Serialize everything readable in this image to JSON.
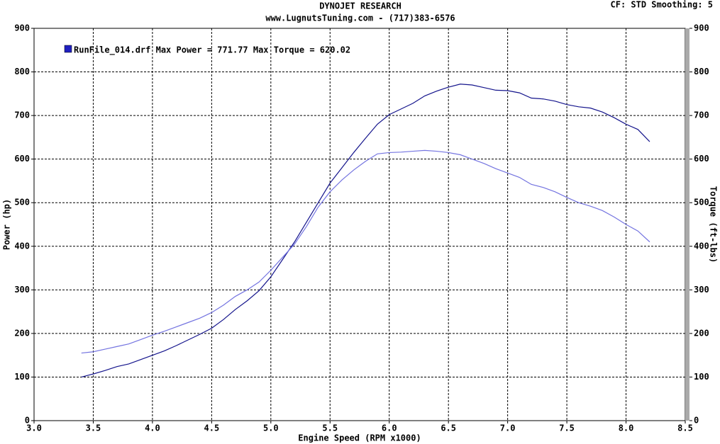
{
  "chart_data": {
    "type": "line",
    "title": "DYNOJET RESEARCH",
    "subtitle": "www.LugnutsTuning.com - (717)383-6576",
    "settings_label": "CF: STD  Smoothing: 5",
    "legend_text": "RunFile_014.drf Max Power = 771.77     Max Torque = 620.02",
    "x_label": "Engine Speed (RPM x1000)",
    "y_label": "Power (hp)",
    "y2_label": "Torque (ft-lbs)",
    "grid": true,
    "xlim": [
      3,
      8.5
    ],
    "xticks": [
      {
        "value": 3,
        "label": "3.0"
      },
      3.5,
      {
        "value": 4,
        "label": "4.0"
      },
      4.5,
      {
        "value": 5,
        "label": "5.0"
      },
      5.5,
      {
        "value": 6,
        "label": "6.0"
      },
      6.5,
      {
        "value": 7,
        "label": "7.0"
      },
      7.5,
      {
        "value": 8,
        "label": "8.0"
      },
      8.5
    ],
    "ylim": [
      0,
      900
    ],
    "yticks": [
      0,
      100,
      200,
      300,
      400,
      500,
      600,
      700,
      800,
      900
    ],
    "y2lim": [
      0,
      900
    ],
    "y2ticks": [
      0,
      100,
      200,
      300,
      400,
      500,
      600,
      700,
      800,
      900
    ],
    "x": [
      3.4,
      3.5,
      3.6,
      3.7,
      3.8,
      3.9,
      4.0,
      4.1,
      4.2,
      4.3,
      4.4,
      4.5,
      4.6,
      4.7,
      4.8,
      4.9,
      5.0,
      5.1,
      5.2,
      5.3,
      5.4,
      5.5,
      5.6,
      5.7,
      5.8,
      5.9,
      6.0,
      6.1,
      6.2,
      6.3,
      6.4,
      6.5,
      6.6,
      6.7,
      6.8,
      6.9,
      7.0,
      7.1,
      7.2,
      7.3,
      7.4,
      7.5,
      7.6,
      7.7,
      7.8,
      7.9,
      8.0,
      8.1,
      8.2
    ],
    "series": [
      {
        "color": "#14148c",
        "values": [
          100,
          107,
          115,
          124,
          130,
          140,
          150,
          160,
          172,
          185,
          198,
          212,
          232,
          255,
          275,
          298,
          330,
          370,
          410,
          455,
          500,
          545,
          580,
          615,
          648,
          680,
          702,
          715,
          728,
          745,
          756,
          765,
          772,
          770,
          764,
          758,
          757,
          752,
          740,
          738,
          733,
          725,
          720,
          717,
          708,
          695,
          680,
          668,
          640
        ]
      },
      {
        "color": "#7474e0",
        "axis": "y2",
        "values": [
          155,
          158,
          164,
          170,
          176,
          186,
          196,
          205,
          215,
          225,
          235,
          248,
          265,
          285,
          300,
          318,
          345,
          375,
          405,
          445,
          490,
          525,
          552,
          575,
          595,
          612,
          615,
          616,
          618,
          620,
          618,
          615,
          610,
          600,
          590,
          578,
          568,
          558,
          542,
          535,
          525,
          512,
          500,
          492,
          482,
          467,
          450,
          435,
          410
        ]
      }
    ]
  }
}
